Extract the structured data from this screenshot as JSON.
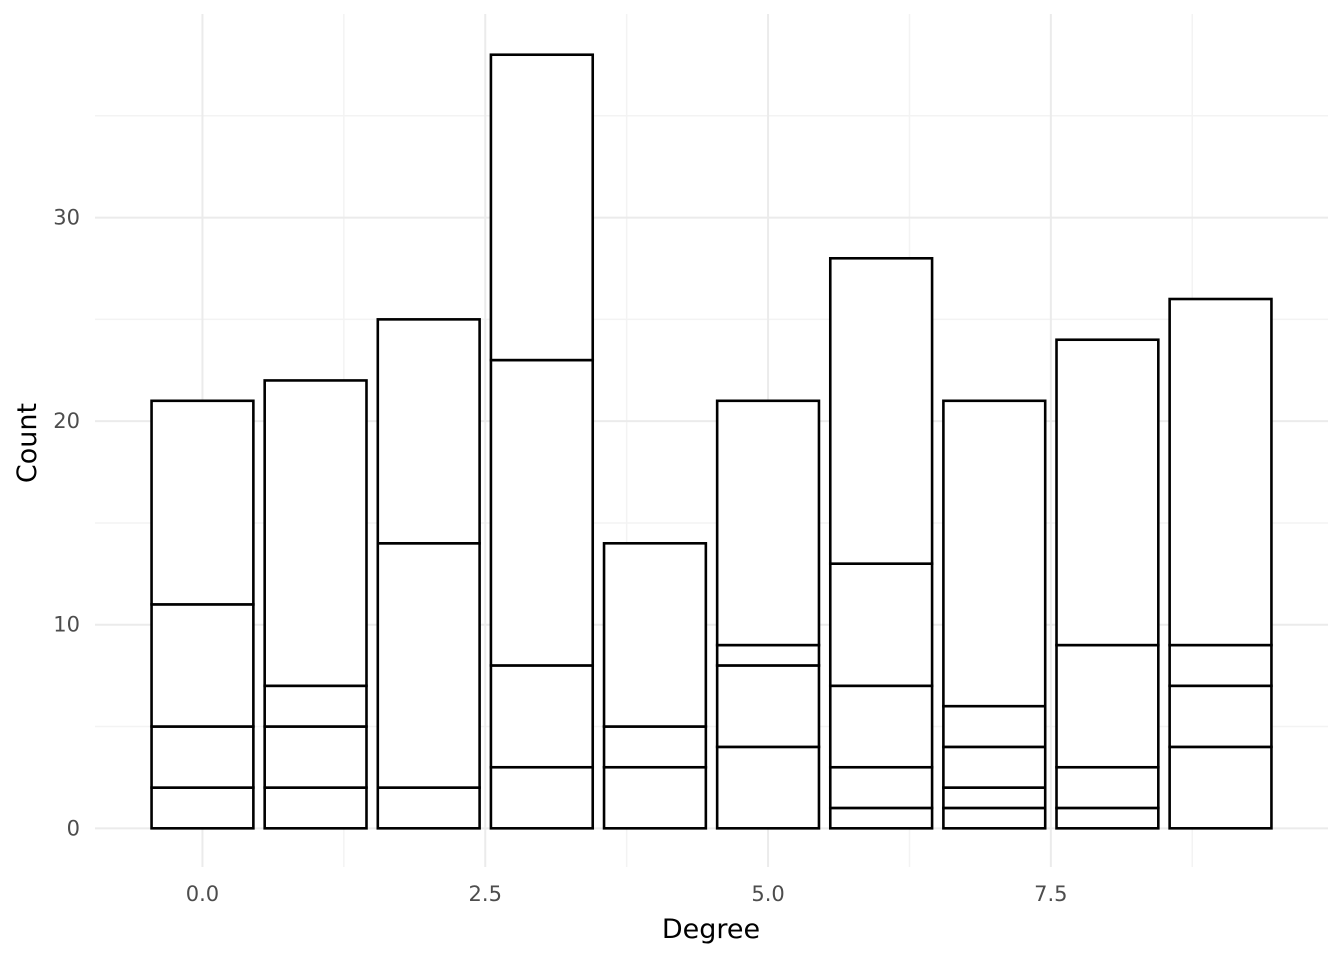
{
  "chart_data": {
    "type": "bar",
    "stacked": true,
    "title": "",
    "xlabel": "Degree",
    "ylabel": "Count",
    "xlim": [
      -0.95,
      9.95
    ],
    "ylim": [
      -1.9,
      40
    ],
    "x_ticks": [
      {
        "value": 0,
        "label": "0.0"
      },
      {
        "value": 2.5,
        "label": "2.5"
      },
      {
        "value": 5,
        "label": "5.0"
      },
      {
        "value": 7.5,
        "label": "7.5"
      }
    ],
    "x_minor_ticks": [
      1.25,
      3.75,
      6.25,
      8.75
    ],
    "y_ticks": [
      {
        "value": 0,
        "label": "0"
      },
      {
        "value": 10,
        "label": "10"
      },
      {
        "value": 20,
        "label": "20"
      },
      {
        "value": 30,
        "label": "30"
      }
    ],
    "y_minor_ticks": [
      5,
      15,
      25,
      35
    ],
    "grid": true,
    "fill_color": "#ffffff",
    "outline_color": "#000000",
    "bars": [
      {
        "x": 0,
        "boundaries": [
          0,
          2,
          5,
          11,
          21
        ]
      },
      {
        "x": 1,
        "boundaries": [
          0,
          2,
          5,
          7,
          22
        ]
      },
      {
        "x": 2,
        "boundaries": [
          0,
          2,
          14,
          25
        ]
      },
      {
        "x": 3,
        "boundaries": [
          0,
          3,
          8,
          23,
          38
        ]
      },
      {
        "x": 4,
        "boundaries": [
          0,
          3,
          5,
          14
        ]
      },
      {
        "x": 5,
        "boundaries": [
          0,
          4,
          8,
          9,
          21
        ]
      },
      {
        "x": 6,
        "boundaries": [
          0,
          1,
          3,
          7,
          13,
          28
        ]
      },
      {
        "x": 7,
        "boundaries": [
          0,
          1,
          2,
          4,
          6,
          21
        ]
      },
      {
        "x": 8,
        "boundaries": [
          0,
          1,
          3,
          9,
          24
        ]
      },
      {
        "x": 9,
        "boundaries": [
          0,
          4,
          7,
          9,
          26
        ]
      }
    ]
  }
}
